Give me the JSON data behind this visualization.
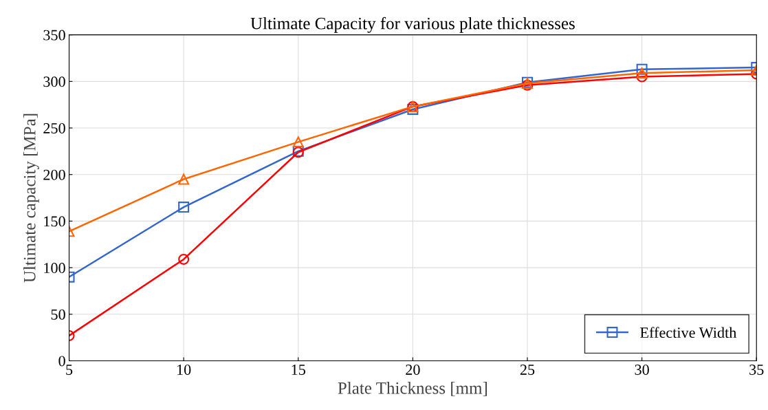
{
  "chart_data": {
    "type": "line",
    "title": "Ultimate Capacity for various plate thicknesses",
    "xlabel": "Plate Thickness [mm]",
    "ylabel": "Ultimate capacity [MPa]",
    "x": [
      5,
      10,
      15,
      20,
      25,
      30,
      35
    ],
    "series": [
      {
        "name": "Effective Width",
        "color": "#3366cc",
        "marker": "square",
        "values": [
          90,
          165,
          225,
          270,
          299,
          313,
          315
        ]
      },
      {
        "color": "#ff0000",
        "marker": "circle",
        "values": [
          27,
          109,
          224,
          273,
          296,
          305,
          308
        ]
      },
      {
        "color": "#ff6600",
        "marker": "triangle",
        "values": [
          139,
          195,
          235,
          273,
          298,
          309,
          312
        ]
      }
    ],
    "xlim": [
      5,
      35
    ],
    "xticks": [
      5,
      10,
      15,
      20,
      25,
      30,
      35
    ],
    "ylim": [
      0,
      350
    ],
    "yticks": [
      0,
      50,
      100,
      150,
      200,
      250,
      300,
      350
    ],
    "grid": true,
    "legend": "bottom right",
    "line_style": "solid"
  }
}
